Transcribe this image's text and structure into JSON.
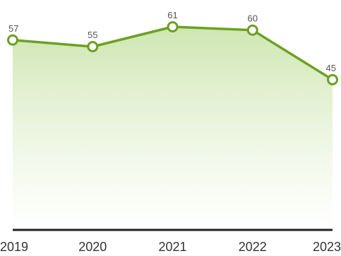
{
  "chart_data": {
    "type": "area",
    "categories": [
      "2019",
      "2020",
      "2021",
      "2022",
      "2023"
    ],
    "values": [
      57,
      55,
      61,
      60,
      45
    ],
    "value_labels": [
      "57",
      "55",
      "61",
      "60",
      "45"
    ],
    "ylim": [
      0,
      66
    ],
    "grid": false,
    "colors": {
      "line": "#6aa121",
      "fill_top": "#c9e3a8",
      "fill_bottom": "#ffffff",
      "marker_fill": "#ffffff",
      "baseline": "#222222",
      "label_text": "#555555",
      "tick_text": "#333333"
    }
  }
}
